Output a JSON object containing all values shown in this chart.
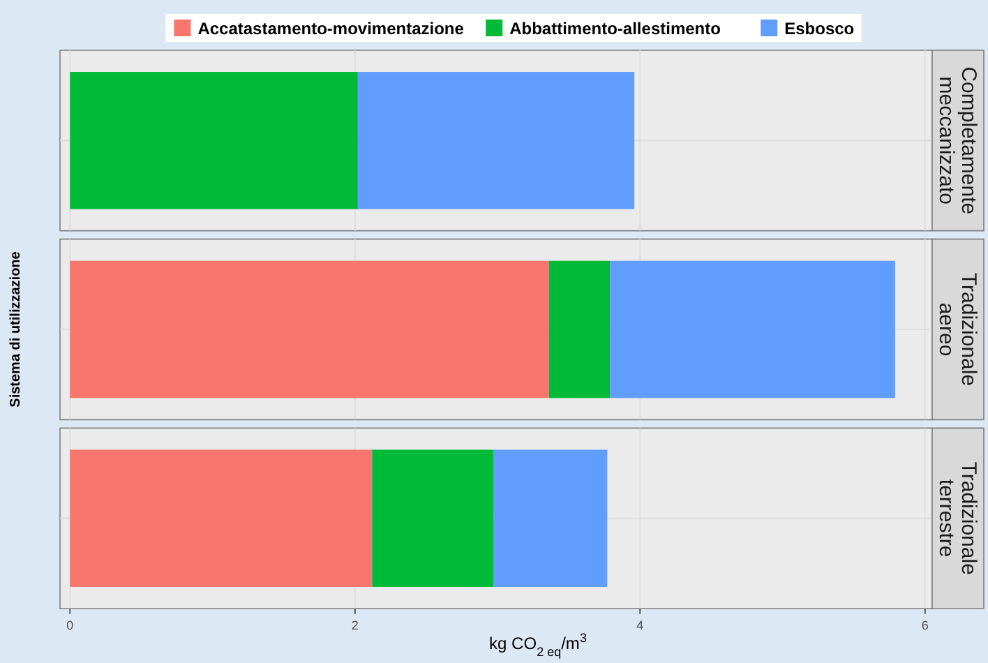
{
  "chart_data": {
    "type": "bar",
    "orientation": "horizontal",
    "stacked": true,
    "ylabel": "Sistema di utilizzazione",
    "xlabel": "kg CO$_{2 eq}$/m$^{3}$",
    "categories": [
      "Completamente meccanizzato",
      "Tradizionale aereo",
      "Tradizionale terrestre"
    ],
    "series": [
      {
        "name": "Accatastamento-movimentazione",
        "color": "#f8766d",
        "values": [
          null,
          3.36,
          2.12
        ]
      },
      {
        "name": "Abbattimento-allestimento",
        "color": "#00ba38",
        "values": [
          2.02,
          0.43,
          0.85
        ]
      },
      {
        "name": "Esbosco",
        "color": "#619cff",
        "values": [
          1.94,
          2.0,
          0.8
        ]
      }
    ],
    "xlim": [
      -0.07,
      6.05
    ],
    "xticks": [
      0,
      2,
      4,
      6
    ],
    "grid": true,
    "legend": "top"
  }
}
